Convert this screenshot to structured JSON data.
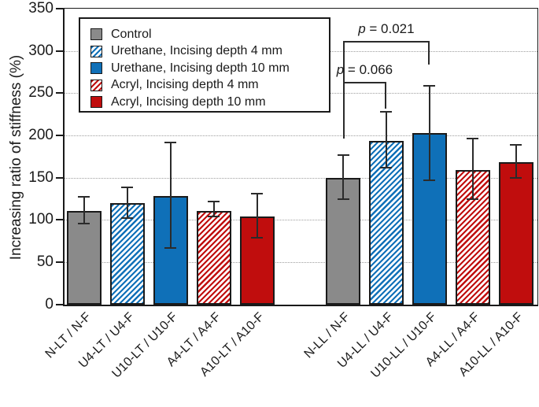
{
  "colors": {
    "background": "#ffffff",
    "axis": "#1a1a1a",
    "grid": "#9e9e9e",
    "error_bar": "#2b2b2b",
    "control_gray": "#8a8a8a",
    "urethane_blue": "#0f70b8",
    "acryl_red": "#c00d0d"
  },
  "chart_data": {
    "type": "bar",
    "title": "",
    "xlabel": "",
    "ylabel": "Increasing ratio of stiffness (%)",
    "ylim": [
      0,
      350
    ],
    "yticks": [
      0,
      50,
      100,
      150,
      200,
      250,
      300,
      350
    ],
    "grid": "horizontal-dotted at every 50",
    "legend_position": "upper-left",
    "error_bars": "symmetric-caps, values read from chart",
    "series": [
      {
        "name": "Control",
        "color": "#8a8a8a",
        "hatch": false
      },
      {
        "name": "Urethane, Incising depth 4 mm",
        "color": "#0f70b8",
        "hatch": true
      },
      {
        "name": "Urethane, Incising depth 10 mm",
        "color": "#0f70b8",
        "hatch": false
      },
      {
        "name": "Acryl, Incising depth 4 mm",
        "color": "#c00d0d",
        "hatch": true
      },
      {
        "name": "Acryl, Incising depth 10 mm",
        "color": "#c00d0d",
        "hatch": false
      }
    ],
    "groups": [
      {
        "name": "LT",
        "bars": [
          {
            "category": "N-LT / N-F",
            "series_index": 0,
            "value": 111,
            "err_high": 127,
            "err_low": 96
          },
          {
            "category": "U4-LT / U4-F",
            "series_index": 1,
            "value": 120,
            "err_high": 138,
            "err_low": 102
          },
          {
            "category": "U10-LT / U10-F",
            "series_index": 2,
            "value": 129,
            "err_high": 192,
            "err_low": 67
          },
          {
            "category": "A4-LT / A4-F",
            "series_index": 3,
            "value": 111,
            "err_high": 122,
            "err_low": 104
          },
          {
            "category": "A10-LT / A10-F",
            "series_index": 4,
            "value": 104,
            "err_high": 131,
            "err_low": 79
          }
        ]
      },
      {
        "name": "LL",
        "bars": [
          {
            "category": "N-LL / N-F",
            "series_index": 0,
            "value": 150,
            "err_high": 177,
            "err_low": 124
          },
          {
            "category": "U4-LL / U4-F",
            "series_index": 1,
            "value": 194,
            "err_high": 228,
            "err_low": 162
          },
          {
            "category": "U10-LL / U10-F",
            "series_index": 2,
            "value": 203,
            "err_high": 259,
            "err_low": 147
          },
          {
            "category": "A4-LL / A4-F",
            "series_index": 3,
            "value": 159,
            "err_high": 196,
            "err_low": 124
          },
          {
            "category": "A10-LL / A10-F",
            "series_index": 4,
            "value": 169,
            "err_high": 189,
            "err_low": 150
          }
        ]
      }
    ],
    "annotations": [
      {
        "label": "p = 0.021",
        "group": 1,
        "from_bar": 0,
        "to_bar": 2,
        "bar_value": 312,
        "left_leg_value": 196,
        "right_leg_value": 284
      },
      {
        "label": "p = 0.066",
        "group": 1,
        "from_bar": 0,
        "to_bar": 1,
        "bar_value": 263,
        "left_leg_value": 196,
        "right_leg_value": 232
      }
    ]
  }
}
